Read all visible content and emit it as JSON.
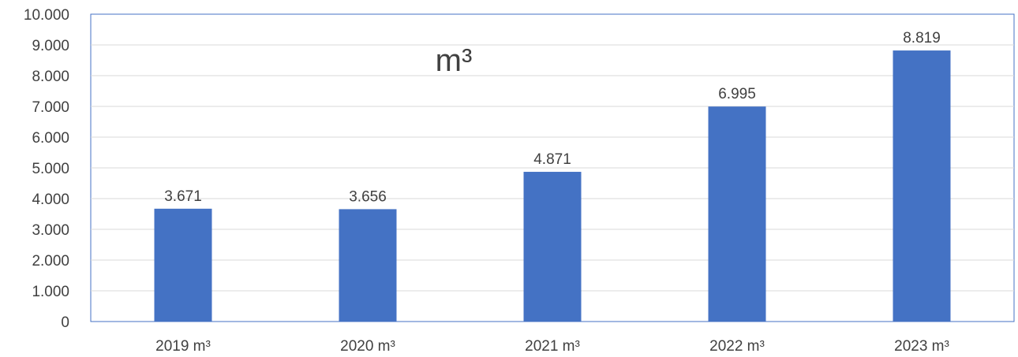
{
  "chart_data": {
    "type": "bar",
    "title": "m³",
    "categories": [
      "2019 m³",
      "2020 m³",
      "2021 m³",
      "2022 m³",
      "2023 m³"
    ],
    "values": [
      3671,
      3656,
      4871,
      6995,
      8819
    ],
    "value_labels": [
      "3.671",
      "3.656",
      "4.871",
      "6.995",
      "8.819"
    ],
    "yticks": [
      "0",
      "1.000",
      "2.000",
      "3.000",
      "4.000",
      "5.000",
      "6.000",
      "7.000",
      "8.000",
      "9.000",
      "10.000"
    ],
    "ylim": [
      0,
      10000
    ],
    "grid": true,
    "bar_color": "#4472C4",
    "grid_color": "#D9D9D9",
    "border_color": "#4472C4",
    "text_color": "#404040"
  }
}
